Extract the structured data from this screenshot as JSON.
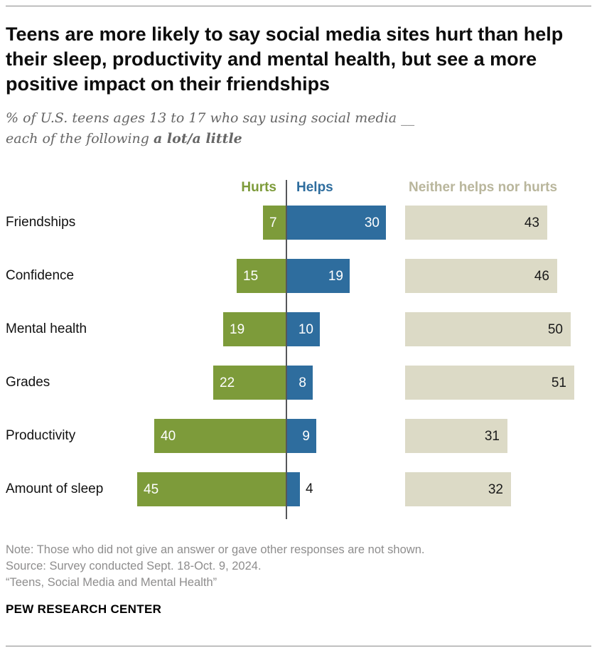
{
  "title": "Teens are more likely to say social media sites hurt than help their sleep, productivity and mental health, but see a more positive impact on their friendships",
  "subtitle_prefix": "% of U.S. teens ages 13 to 17 who say using social media __ each of the following ",
  "subtitle_bold": "a lot/a little",
  "chart_data": {
    "type": "bar",
    "orientation": "horizontal-diverging",
    "title": "Teens are more likely to say social media sites hurt than help their sleep, productivity and mental health, but see a more positive impact on their friendships",
    "categories": [
      "Friendships",
      "Confidence",
      "Mental health",
      "Grades",
      "Productivity",
      "Amount of sleep"
    ],
    "series": [
      {
        "name": "Hurts",
        "color": "#7d9b3a",
        "values": [
          7,
          15,
          19,
          22,
          40,
          45
        ]
      },
      {
        "name": "Helps",
        "color": "#2e6d9e",
        "values": [
          30,
          19,
          10,
          8,
          9,
          4
        ]
      },
      {
        "name": "Neither helps nor hurts",
        "color": "#dcdac6",
        "values": [
          43,
          46,
          50,
          51,
          31,
          32
        ]
      }
    ],
    "value_unit": "%",
    "xlim": [
      0,
      51
    ],
    "zero_line": true,
    "legend_position": "top-as-column-headers"
  },
  "notes": {
    "note": "Note: Those who did not give an answer or gave other responses are not shown.",
    "source": "Source: Survey conducted Sept. 18-Oct. 9, 2024.",
    "quote": "“Teens, Social Media and Mental Health”"
  },
  "brand": "PEW RESEARCH CENTER"
}
